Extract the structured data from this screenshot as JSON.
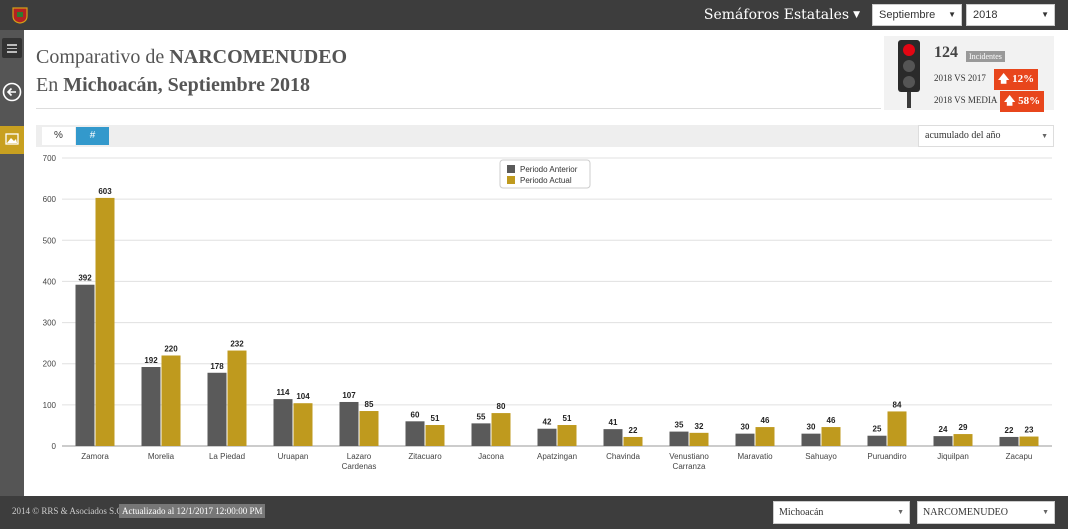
{
  "topbar": {
    "menu_label": "Semáforos Estatales",
    "month": "Septiembre",
    "year": "2018"
  },
  "header": {
    "title_prefix": "Comparativo de ",
    "title_subject": "NARCOMENUDEO",
    "subtitle_prefix": "En ",
    "subtitle_place": "Michoacán, Septiembre 2018"
  },
  "kpi": {
    "count": "124",
    "badge": "Incidentes",
    "vs_prev_label": "2018 VS 2017",
    "vs_prev_value": "12%",
    "vs_avg_label": "2018 VS MEDIA",
    "vs_avg_value": "58%",
    "light_state": "red",
    "colors": {
      "red": "#e30613",
      "off": "#555555",
      "alert": "#e8461c"
    }
  },
  "toolbar": {
    "pct_label": "%",
    "num_label": "#",
    "range_select": "acumulado del año"
  },
  "chart_data": {
    "type": "bar",
    "categories": [
      "Zamora",
      "Morelia",
      "La Piedad",
      "Uruapan",
      "Lazaro Cardenas",
      "Zitacuaro",
      "Jacona",
      "Apatzingan",
      "Chavinda",
      "Venustiano Carranza",
      "Maravatio",
      "Sahuayo",
      "Puruandiro",
      "Jiquilpan",
      "Zacapu"
    ],
    "series": [
      {
        "name": "Periodo Anterior",
        "color": "#5a5a5a",
        "values": [
          392,
          192,
          178,
          114,
          107,
          60,
          55,
          42,
          41,
          35,
          30,
          30,
          25,
          24,
          22
        ]
      },
      {
        "name": "Periodo Actual",
        "color": "#bf9a1e",
        "values": [
          603,
          220,
          232,
          104,
          85,
          51,
          80,
          51,
          22,
          32,
          46,
          46,
          84,
          29,
          23
        ]
      }
    ],
    "yticks": [
      0,
      100,
      200,
      300,
      400,
      500,
      600,
      700
    ],
    "ylim": [
      0,
      700
    ],
    "grid": true,
    "legend_position": "top-center"
  },
  "footer": {
    "copyright": "2014 © RRS & Asociados S.C.",
    "updated": "Actualizado al 12/1/2017 12:00:00 PM",
    "state_select": "Michoacán",
    "crime_select": "NARCOMENUDEO"
  }
}
